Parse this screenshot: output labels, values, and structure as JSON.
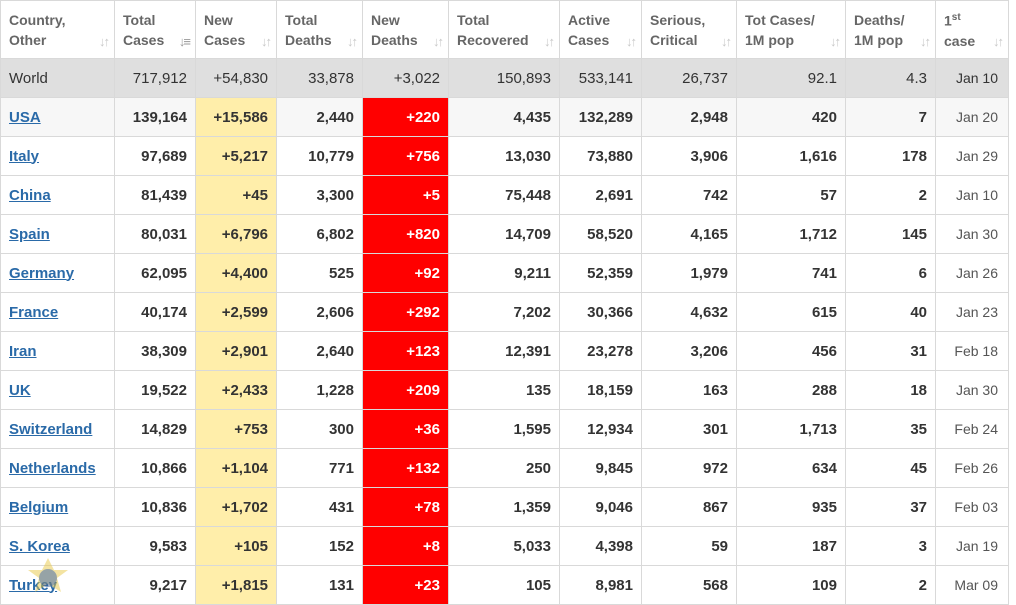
{
  "columns": [
    {
      "line1": "Country,",
      "line2": "Other",
      "sort_icon": "sort-arrows-icon"
    },
    {
      "line1": "Total",
      "line2": "Cases",
      "sort_icon": "sort-descending-icon"
    },
    {
      "line1": "New",
      "line2": "Cases",
      "sort_icon": "sort-arrows-icon"
    },
    {
      "line1": "Total",
      "line2": "Deaths",
      "sort_icon": "sort-arrows-icon"
    },
    {
      "line1": "New",
      "line2": "Deaths",
      "sort_icon": "sort-arrows-icon"
    },
    {
      "line1": "Total",
      "line2": "Recovered",
      "sort_icon": "sort-arrows-icon"
    },
    {
      "line1": "Active",
      "line2": "Cases",
      "sort_icon": "sort-arrows-icon"
    },
    {
      "line1": "Serious,",
      "line2": "Critical",
      "sort_icon": "sort-arrows-icon"
    },
    {
      "line1": "Tot Cases/",
      "line2": "1M pop",
      "sort_icon": "sort-arrows-icon"
    },
    {
      "line1": "Deaths/",
      "line2": "1M pop",
      "sort_icon": "sort-arrows-icon"
    },
    {
      "line1": "1",
      "line1_sup": "st",
      "line2": "case",
      "sort_icon": "sort-arrows-icon"
    }
  ],
  "world": [
    "World",
    "717,912",
    "+54,830",
    "33,878",
    "+3,022",
    "150,893",
    "533,141",
    "26,737",
    "92.1",
    "4.3",
    "Jan 10"
  ],
  "rows": [
    [
      "USA",
      "139,164",
      "+15,586",
      "2,440",
      "+220",
      "4,435",
      "132,289",
      "2,948",
      "420",
      "7",
      "Jan 20"
    ],
    [
      "Italy",
      "97,689",
      "+5,217",
      "10,779",
      "+756",
      "13,030",
      "73,880",
      "3,906",
      "1,616",
      "178",
      "Jan 29"
    ],
    [
      "China",
      "81,439",
      "+45",
      "3,300",
      "+5",
      "75,448",
      "2,691",
      "742",
      "57",
      "2",
      "Jan 10"
    ],
    [
      "Spain",
      "80,031",
      "+6,796",
      "6,802",
      "+820",
      "14,709",
      "58,520",
      "4,165",
      "1,712",
      "145",
      "Jan 30"
    ],
    [
      "Germany",
      "62,095",
      "+4,400",
      "525",
      "+92",
      "9,211",
      "52,359",
      "1,979",
      "741",
      "6",
      "Jan 26"
    ],
    [
      "France",
      "40,174",
      "+2,599",
      "2,606",
      "+292",
      "7,202",
      "30,366",
      "4,632",
      "615",
      "40",
      "Jan 23"
    ],
    [
      "Iran",
      "38,309",
      "+2,901",
      "2,640",
      "+123",
      "12,391",
      "23,278",
      "3,206",
      "456",
      "31",
      "Feb 18"
    ],
    [
      "UK",
      "19,522",
      "+2,433",
      "1,228",
      "+209",
      "135",
      "18,159",
      "163",
      "288",
      "18",
      "Jan 30"
    ],
    [
      "Switzerland",
      "14,829",
      "+753",
      "300",
      "+36",
      "1,595",
      "12,934",
      "301",
      "1,713",
      "35",
      "Feb 24"
    ],
    [
      "Netherlands",
      "10,866",
      "+1,104",
      "771",
      "+132",
      "250",
      "9,845",
      "972",
      "634",
      "45",
      "Feb 26"
    ],
    [
      "Belgium",
      "10,836",
      "+1,702",
      "431",
      "+78",
      "1,359",
      "9,046",
      "867",
      "935",
      "37",
      "Feb 03"
    ],
    [
      "S. Korea",
      "9,583",
      "+105",
      "152",
      "+8",
      "5,033",
      "4,398",
      "59",
      "187",
      "3",
      "Jan 19"
    ],
    [
      "Turkey",
      "9,217",
      "+1,815",
      "131",
      "+23",
      "105",
      "8,981",
      "568",
      "109",
      "2",
      "Mar 09"
    ]
  ],
  "colors": {
    "new_cases_bg": "#ffeeaa",
    "new_deaths_bg": "#ff0000",
    "world_row_bg": "#dfdfdf",
    "link": "#2a6aa8"
  }
}
